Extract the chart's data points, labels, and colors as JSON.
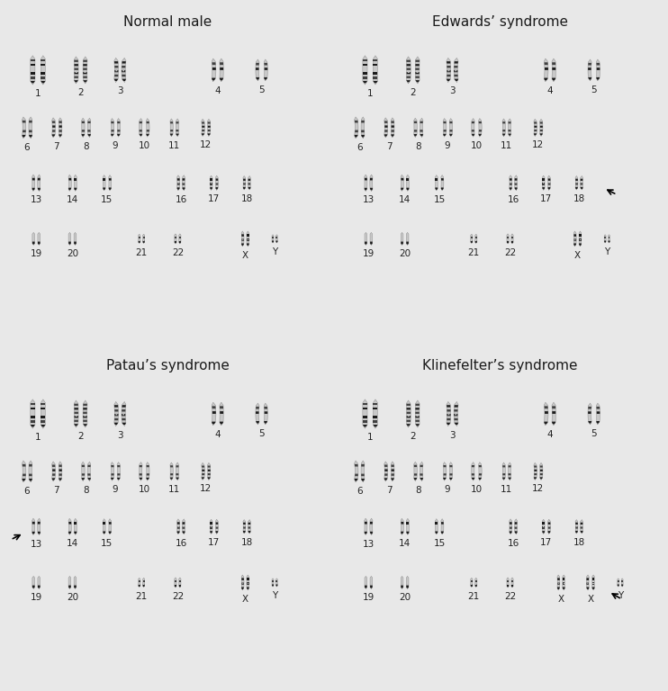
{
  "panels": [
    {
      "title": "Normal male",
      "type": "normal",
      "row": 0,
      "col": 0
    },
    {
      "title": "Edwards’ syndrome",
      "type": "edwards",
      "row": 0,
      "col": 1
    },
    {
      "title": "Patau’s syndrome",
      "type": "patau",
      "row": 1,
      "col": 0
    },
    {
      "title": "Klinefelter’s syndrome",
      "type": "klinefelter",
      "row": 1,
      "col": 1
    }
  ],
  "bg_color": "#e8e8e8",
  "panel_bg": "#ebebeb",
  "title_fontsize": 11,
  "label_fontsize": 7.5,
  "divider_color": "#333333",
  "text_color": "#1a1a1a"
}
